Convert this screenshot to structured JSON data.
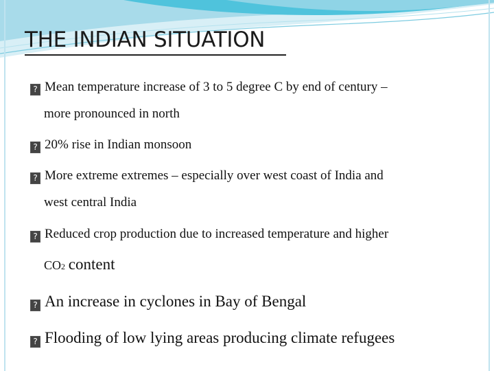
{
  "slide": {
    "title": "THE INDIAN SITUATION",
    "accent_color": "#4fc3dc",
    "bullet_marker": "?",
    "bullets": [
      {
        "lines": [
          "Mean temperature increase of 3 to 5 degree C by end of century –",
          "more pronounced in north"
        ]
      },
      {
        "lines": [
          "20% rise in Indian monsoon"
        ]
      },
      {
        "lines": [
          "More extreme extremes – especially over west coast of India and",
          "west central India"
        ]
      },
      {
        "lines": [
          "Reduced crop production due to increased temperature and higher"
        ],
        "line2_prefix": "CO",
        "line2_subscript": "2",
        "line2_suffix": "content"
      },
      {
        "lines": [
          "An increase in cyclones in Bay of Bengal"
        ]
      },
      {
        "lines": [
          "Flooding of low lying areas producing climate refugees"
        ]
      }
    ]
  }
}
